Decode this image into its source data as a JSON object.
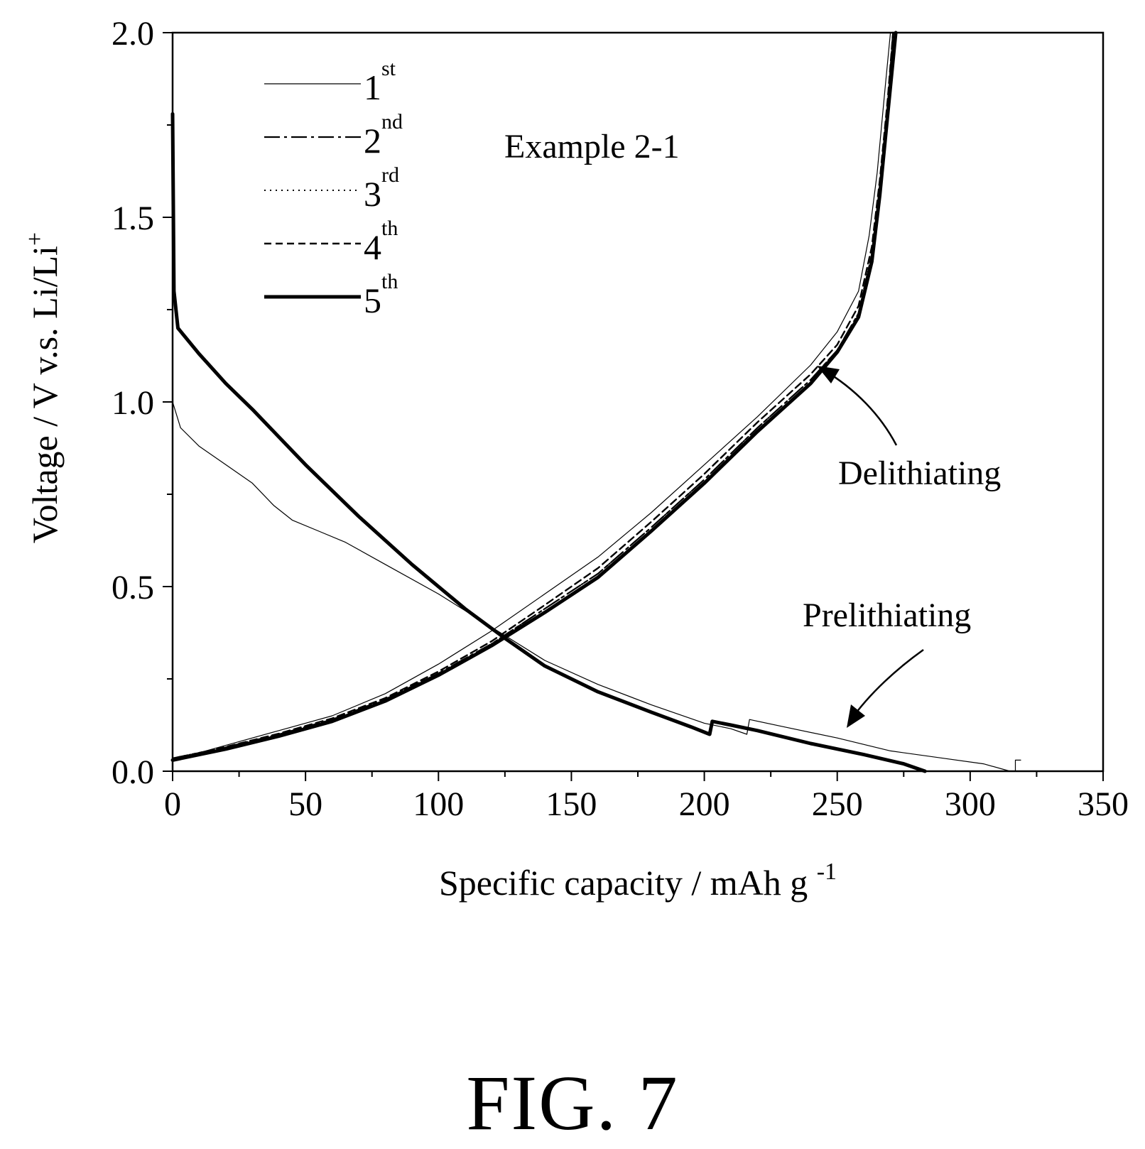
{
  "figure_label": "FIG. 7",
  "chart_data": {
    "type": "line",
    "title": "",
    "panel_label": "Example 2-1",
    "xlabel": "Specific capacity / mAh g",
    "xlabel_superscript": "-1",
    "ylabel": "Voltage / V v.s. Li/Li",
    "ylabel_superscript": "+",
    "xlim": [
      0,
      350
    ],
    "ylim": [
      0.0,
      2.0
    ],
    "x_ticks": [
      "0",
      "50",
      "100",
      "150",
      "200",
      "250",
      "300",
      "350"
    ],
    "y_ticks": [
      "0.0",
      "0.5",
      "1.0",
      "1.5",
      "2.0"
    ],
    "grid": false,
    "legend_position": "top-left",
    "annotations": [
      {
        "text": "Delithiating",
        "points_to": [
          245,
          1.09
        ]
      },
      {
        "text": "Prelithiating",
        "points_to": [
          255,
          0.11
        ]
      }
    ],
    "series": [
      {
        "name": "1",
        "name_sup": "st",
        "style": "thin-solid",
        "lithiation": [
          [
            0,
            1.0
          ],
          [
            3,
            0.93
          ],
          [
            10,
            0.88
          ],
          [
            20,
            0.83
          ],
          [
            30,
            0.78
          ],
          [
            38,
            0.72
          ],
          [
            45,
            0.68
          ],
          [
            55,
            0.65
          ],
          [
            65,
            0.62
          ],
          [
            80,
            0.56
          ],
          [
            100,
            0.48
          ],
          [
            120,
            0.39
          ],
          [
            140,
            0.3
          ],
          [
            160,
            0.235
          ],
          [
            180,
            0.18
          ],
          [
            200,
            0.13
          ],
          [
            210,
            0.115
          ],
          [
            216,
            0.1
          ],
          [
            217,
            0.14
          ],
          [
            230,
            0.12
          ],
          [
            250,
            0.09
          ],
          [
            270,
            0.055
          ],
          [
            290,
            0.035
          ],
          [
            305,
            0.02
          ],
          [
            315,
            0.0
          ],
          [
            317,
            0.0
          ],
          [
            317,
            0.03
          ],
          [
            319,
            0.03
          ]
        ],
        "delithiation": [
          [
            0,
            0.03
          ],
          [
            20,
            0.07
          ],
          [
            40,
            0.11
          ],
          [
            60,
            0.15
          ],
          [
            80,
            0.21
          ],
          [
            100,
            0.29
          ],
          [
            120,
            0.38
          ],
          [
            140,
            0.48
          ],
          [
            160,
            0.58
          ],
          [
            180,
            0.7
          ],
          [
            200,
            0.83
          ],
          [
            220,
            0.96
          ],
          [
            240,
            1.1
          ],
          [
            250,
            1.19
          ],
          [
            258,
            1.3
          ],
          [
            262,
            1.45
          ],
          [
            265,
            1.62
          ],
          [
            268,
            1.85
          ],
          [
            270,
            2.0
          ]
        ]
      },
      {
        "name": "2",
        "name_sup": "nd",
        "style": "dash-dot",
        "lithiation": [
          [
            0,
            1.78
          ],
          [
            0.5,
            1.3
          ],
          [
            2,
            1.2
          ],
          [
            10,
            1.13
          ],
          [
            20,
            1.05
          ],
          [
            30,
            0.98
          ],
          [
            50,
            0.83
          ],
          [
            70,
            0.69
          ],
          [
            90,
            0.56
          ],
          [
            110,
            0.44
          ],
          [
            125,
            0.36
          ],
          [
            140,
            0.285
          ],
          [
            160,
            0.215
          ],
          [
            180,
            0.16
          ],
          [
            195,
            0.12
          ],
          [
            202,
            0.1
          ],
          [
            203,
            0.135
          ],
          [
            210,
            0.125
          ],
          [
            220,
            0.11
          ],
          [
            240,
            0.075
          ],
          [
            260,
            0.045
          ],
          [
            275,
            0.02
          ],
          [
            283,
            0.0
          ]
        ],
        "delithiation": [
          [
            0,
            0.035
          ],
          [
            20,
            0.065
          ],
          [
            40,
            0.1
          ],
          [
            60,
            0.14
          ],
          [
            80,
            0.195
          ],
          [
            100,
            0.265
          ],
          [
            120,
            0.345
          ],
          [
            140,
            0.44
          ],
          [
            160,
            0.535
          ],
          [
            180,
            0.66
          ],
          [
            200,
            0.79
          ],
          [
            220,
            0.93
          ],
          [
            240,
            1.06
          ],
          [
            250,
            1.14
          ],
          [
            258,
            1.24
          ],
          [
            263,
            1.4
          ],
          [
            266,
            1.58
          ],
          [
            269,
            1.8
          ],
          [
            271,
            2.0
          ]
        ]
      },
      {
        "name": "3",
        "name_sup": "rd",
        "style": "dotted",
        "lithiation": [
          [
            0,
            1.78
          ],
          [
            0.5,
            1.3
          ],
          [
            2,
            1.2
          ],
          [
            10,
            1.13
          ],
          [
            20,
            1.05
          ],
          [
            30,
            0.98
          ],
          [
            50,
            0.83
          ],
          [
            70,
            0.69
          ],
          [
            90,
            0.56
          ],
          [
            110,
            0.44
          ],
          [
            125,
            0.36
          ],
          [
            140,
            0.285
          ],
          [
            160,
            0.215
          ],
          [
            180,
            0.16
          ],
          [
            195,
            0.12
          ],
          [
            202,
            0.1
          ],
          [
            203,
            0.135
          ],
          [
            210,
            0.125
          ],
          [
            220,
            0.11
          ],
          [
            240,
            0.075
          ],
          [
            260,
            0.045
          ],
          [
            275,
            0.02
          ],
          [
            283,
            0.0
          ]
        ],
        "delithiation": [
          [
            0,
            0.035
          ],
          [
            20,
            0.065
          ],
          [
            40,
            0.1
          ],
          [
            60,
            0.14
          ],
          [
            80,
            0.195
          ],
          [
            100,
            0.265
          ],
          [
            120,
            0.345
          ],
          [
            140,
            0.44
          ],
          [
            160,
            0.535
          ],
          [
            180,
            0.66
          ],
          [
            200,
            0.79
          ],
          [
            220,
            0.93
          ],
          [
            240,
            1.06
          ],
          [
            250,
            1.14
          ],
          [
            258,
            1.24
          ],
          [
            263,
            1.4
          ],
          [
            266,
            1.58
          ],
          [
            269,
            1.8
          ],
          [
            271,
            2.0
          ]
        ]
      },
      {
        "name": "4",
        "name_sup": "th",
        "style": "dashed",
        "lithiation": [
          [
            0,
            1.78
          ],
          [
            0.5,
            1.3
          ],
          [
            2,
            1.2
          ],
          [
            10,
            1.13
          ],
          [
            20,
            1.05
          ],
          [
            30,
            0.98
          ],
          [
            50,
            0.83
          ],
          [
            70,
            0.69
          ],
          [
            90,
            0.56
          ],
          [
            110,
            0.44
          ],
          [
            125,
            0.36
          ],
          [
            140,
            0.285
          ],
          [
            160,
            0.215
          ],
          [
            180,
            0.16
          ],
          [
            195,
            0.12
          ],
          [
            202,
            0.1
          ],
          [
            203,
            0.135
          ],
          [
            210,
            0.125
          ],
          [
            220,
            0.11
          ],
          [
            240,
            0.075
          ],
          [
            260,
            0.045
          ],
          [
            275,
            0.02
          ],
          [
            283,
            0.0
          ]
        ],
        "delithiation": [
          [
            0,
            0.033
          ],
          [
            20,
            0.066
          ],
          [
            40,
            0.102
          ],
          [
            60,
            0.143
          ],
          [
            80,
            0.198
          ],
          [
            100,
            0.27
          ],
          [
            120,
            0.352
          ],
          [
            140,
            0.45
          ],
          [
            160,
            0.55
          ],
          [
            180,
            0.675
          ],
          [
            200,
            0.805
          ],
          [
            220,
            0.945
          ],
          [
            240,
            1.075
          ],
          [
            250,
            1.155
          ],
          [
            258,
            1.26
          ],
          [
            263,
            1.42
          ],
          [
            266,
            1.6
          ],
          [
            269,
            1.82
          ],
          [
            271,
            2.0
          ]
        ]
      },
      {
        "name": "5",
        "name_sup": "th",
        "style": "thick-solid",
        "lithiation": [
          [
            0,
            1.78
          ],
          [
            0.5,
            1.3
          ],
          [
            2,
            1.2
          ],
          [
            10,
            1.13
          ],
          [
            20,
            1.05
          ],
          [
            30,
            0.98
          ],
          [
            50,
            0.83
          ],
          [
            70,
            0.69
          ],
          [
            90,
            0.56
          ],
          [
            110,
            0.44
          ],
          [
            125,
            0.36
          ],
          [
            140,
            0.285
          ],
          [
            160,
            0.215
          ],
          [
            180,
            0.16
          ],
          [
            195,
            0.12
          ],
          [
            202,
            0.1
          ],
          [
            203,
            0.135
          ],
          [
            210,
            0.125
          ],
          [
            220,
            0.11
          ],
          [
            240,
            0.075
          ],
          [
            260,
            0.045
          ],
          [
            275,
            0.02
          ],
          [
            283,
            0.0
          ]
        ],
        "delithiation": [
          [
            0,
            0.03
          ],
          [
            20,
            0.06
          ],
          [
            40,
            0.095
          ],
          [
            60,
            0.135
          ],
          [
            80,
            0.19
          ],
          [
            100,
            0.26
          ],
          [
            120,
            0.34
          ],
          [
            140,
            0.43
          ],
          [
            160,
            0.525
          ],
          [
            180,
            0.65
          ],
          [
            200,
            0.78
          ],
          [
            220,
            0.92
          ],
          [
            240,
            1.05
          ],
          [
            250,
            1.135
          ],
          [
            258,
            1.23
          ],
          [
            263,
            1.38
          ],
          [
            266,
            1.56
          ],
          [
            269,
            1.78
          ],
          [
            272,
            2.0
          ]
        ]
      }
    ]
  }
}
